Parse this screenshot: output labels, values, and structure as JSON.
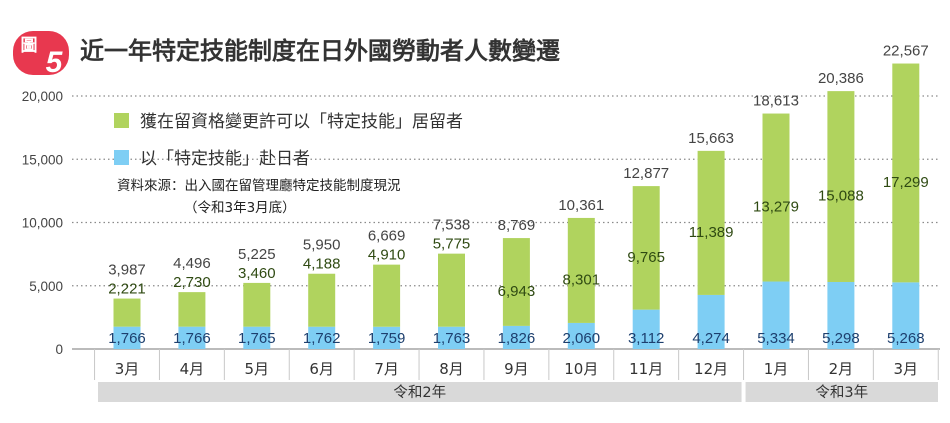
{
  "badge": {
    "label": "圖",
    "number": "5"
  },
  "chart_data": {
    "type": "bar",
    "stacked": true,
    "title": "近一年特定技能制度在日外國勞動者人數變遷",
    "xlabel": "",
    "ylabel": "",
    "ylim": [
      0,
      22567
    ],
    "yticks": [
      0,
      5000,
      10000,
      15000,
      20000
    ],
    "ytick_labels": [
      "0",
      "5,000",
      "10,000",
      "15,000",
      "20,000"
    ],
    "grid": true,
    "categories": [
      "3月",
      "4月",
      "5月",
      "6月",
      "7月",
      "8月",
      "9月",
      "10月",
      "11月",
      "12月",
      "1月",
      "2月",
      "3月"
    ],
    "groups": [
      {
        "label": "令和2年",
        "count": 10
      },
      {
        "label": "令和3年",
        "count": 3
      }
    ],
    "series": [
      {
        "name": "以「特定技能」赴日者",
        "color": "#7ecef4",
        "values": [
          1766,
          1766,
          1765,
          1762,
          1759,
          1763,
          1826,
          2060,
          3112,
          4274,
          5334,
          5298,
          5268
        ],
        "labels": [
          "1,766",
          "1,766",
          "1,765",
          "1,762",
          "1,759",
          "1,763",
          "1,826",
          "2,060",
          "3,112",
          "4,274",
          "5,334",
          "5,298",
          "5,268"
        ]
      },
      {
        "name": "獲在留資格變更許可以「特定技能」居留者",
        "color": "#b0d35e",
        "values": [
          2221,
          2730,
          3460,
          4188,
          4910,
          5775,
          6943,
          8301,
          9765,
          11389,
          13279,
          15088,
          17299
        ],
        "labels": [
          "2,221",
          "2,730",
          "3,460",
          "4,188",
          "4,910",
          "5,775",
          "6,943",
          "8,301",
          "9,765",
          "11,389",
          "13,279",
          "15,088",
          "17,299"
        ]
      }
    ],
    "totals": [
      3987,
      4496,
      5225,
      5950,
      6669,
      7538,
      8769,
      10361,
      12877,
      15663,
      18613,
      20386,
      22567
    ],
    "total_labels": [
      "3,987",
      "4,496",
      "5,225",
      "5,950",
      "6,669",
      "7,538",
      "8,769",
      "10,361",
      "12,877",
      "15,663",
      "18,613",
      "20,386",
      "22,567"
    ],
    "legend_placement": "top-left",
    "source_line1": "資料來源：出入國在留管理廳特定技能制度現況",
    "source_line2": "（令和3年3月底）"
  },
  "colors": {
    "badge": "#e8384f",
    "green": "#b0d35e",
    "blue": "#7ecef4",
    "band": "#d9d9d9"
  }
}
